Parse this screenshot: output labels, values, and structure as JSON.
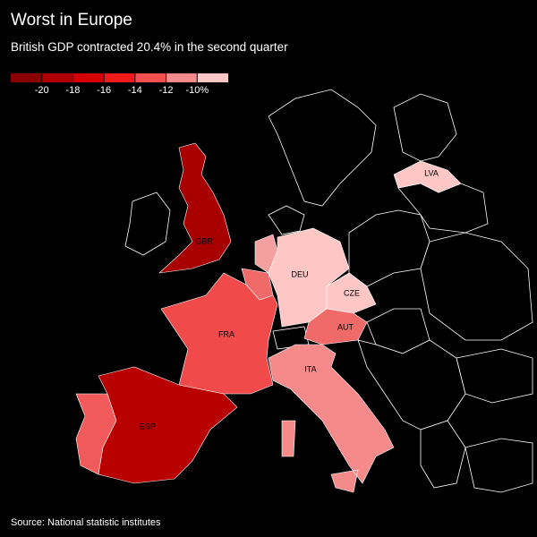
{
  "header": {
    "title": "Worst in Europe",
    "subtitle": "British GDP contracted 20.4% in the second quarter"
  },
  "legend": {
    "lim": [
      -22,
      -8
    ],
    "colors": [
      "#8a0000",
      "#b00000",
      "#d40000",
      "#f01a1a",
      "#f55050",
      "#f58a8a",
      "#ffc6c6"
    ],
    "ticks": [
      -20,
      -18,
      -16,
      -14,
      -12,
      {
        "value": -10,
        "label": "-10%"
      }
    ]
  },
  "regions": [
    {
      "label": "GBR",
      "color": "#a80000"
    },
    {
      "label": "ESP",
      "color": "#b80000"
    },
    {
      "label": "FRA",
      "color": "#f04a4a"
    },
    {
      "label": "DEU",
      "color": "#ffc6c6"
    },
    {
      "label": "CZE",
      "color": "#ffc6c6"
    },
    {
      "label": "AUT",
      "color": "#f06a6a"
    },
    {
      "label": "ITA",
      "color": "#f58a8a"
    },
    {
      "label": "LVA",
      "color": "#ffc6c6"
    }
  ],
  "footer": {
    "source": "Source: National statistic institutes"
  }
}
